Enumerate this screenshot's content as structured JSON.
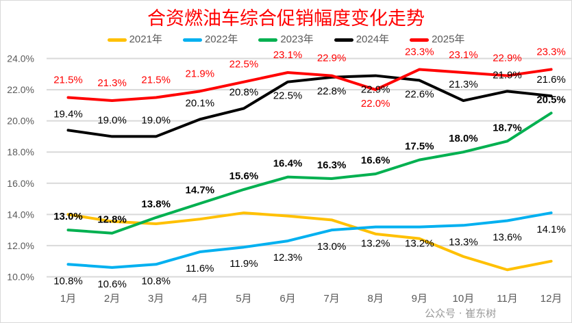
{
  "chart_data": {
    "type": "line",
    "title": "合资燃油车综合促销幅度变化走势",
    "categories": [
      "1月",
      "2月",
      "3月",
      "4月",
      "5月",
      "6月",
      "7月",
      "8月",
      "9月",
      "10月",
      "11月",
      "12月"
    ],
    "ylim": [
      10.0,
      24.0
    ],
    "yticks": [
      "10.0%",
      "12.0%",
      "14.0%",
      "16.0%",
      "18.0%",
      "20.0%",
      "22.0%",
      "24.0%"
    ],
    "grid": true,
    "legend_position": "top",
    "series": [
      {
        "name": "2021年",
        "color": "#ffc000",
        "values": [
          14.0,
          13.55,
          13.4,
          13.7,
          14.1,
          13.9,
          13.65,
          12.75,
          12.45,
          11.3,
          10.45,
          11.0
        ],
        "labels": false
      },
      {
        "name": "2022年",
        "color": "#00b0f0",
        "values": [
          10.8,
          10.6,
          10.8,
          11.6,
          11.9,
          12.3,
          13.0,
          13.2,
          13.2,
          13.3,
          13.6,
          14.1
        ],
        "labels": true
      },
      {
        "name": "2023年",
        "color": "#00b050",
        "values": [
          13.0,
          12.8,
          13.8,
          14.7,
          15.6,
          16.4,
          16.3,
          16.6,
          17.5,
          18.0,
          18.7,
          20.5
        ],
        "labels": true
      },
      {
        "name": "2024年",
        "color": "#000000",
        "values": [
          19.4,
          19.0,
          19.0,
          20.1,
          20.8,
          22.5,
          22.8,
          22.9,
          22.6,
          21.3,
          21.9,
          21.6
        ],
        "labels": true
      },
      {
        "name": "2025年",
        "color": "#ff0000",
        "values": [
          21.5,
          21.3,
          21.5,
          21.9,
          22.5,
          23.1,
          22.9,
          22.0,
          23.3,
          23.1,
          22.9,
          23.3
        ],
        "labels": true
      }
    ]
  },
  "watermark": "公众号 · 崔东树"
}
